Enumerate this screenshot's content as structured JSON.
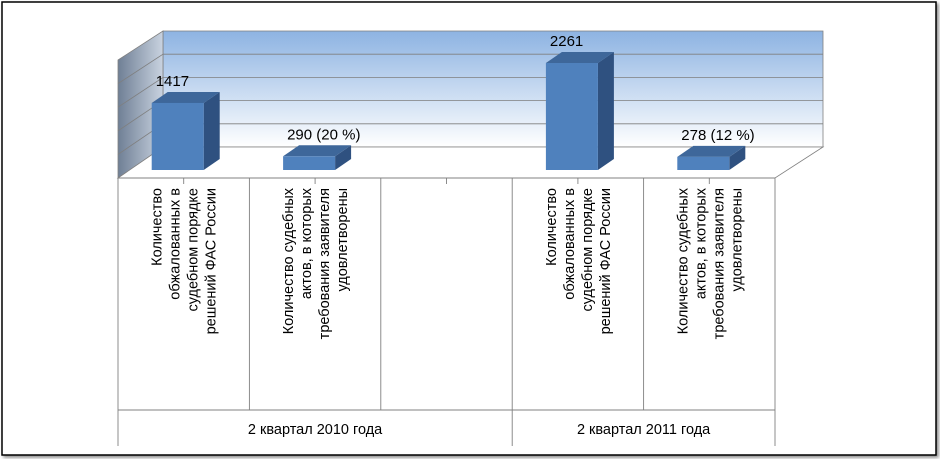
{
  "chart_data": {
    "type": "bar",
    "style": "3d-column",
    "ylim": [
      0,
      2600
    ],
    "grid": true,
    "legend": "none",
    "colors": {
      "bar_front": "#4f81bd",
      "bar_side": "#2f5180",
      "bar_top": "#3e679a",
      "wall_top": "#8db3e2",
      "wall_bottom": "#ffffff",
      "gridline": "#7f7f7f"
    },
    "groups": [
      {
        "label": "2 квартал 2010 года",
        "categories": [
          {
            "lines": [
              "Количество",
              "обжалованных в",
              "судебном порядке",
              "решений ФАС России"
            ],
            "value": 1417,
            "value_label": "1417"
          },
          {
            "lines": [
              "Количество судебных",
              "актов, в которых",
              "требования заявителя",
              "удовлетворены"
            ],
            "value": 290,
            "value_label": "290 (20 %)"
          },
          {
            "lines": [],
            "value": null,
            "value_label": ""
          }
        ]
      },
      {
        "label": "2 квартал 2011 года",
        "categories": [
          {
            "lines": [
              "Количество",
              "обжалованных в",
              "судебном порядке",
              "решений ФАС России"
            ],
            "value": 2261,
            "value_label": "2261"
          },
          {
            "lines": [
              "Количество судебных",
              "актов, в которых",
              "требования заявителя",
              "удовлетворены"
            ],
            "value": 278,
            "value_label": "278 (12 %)"
          }
        ]
      }
    ]
  }
}
